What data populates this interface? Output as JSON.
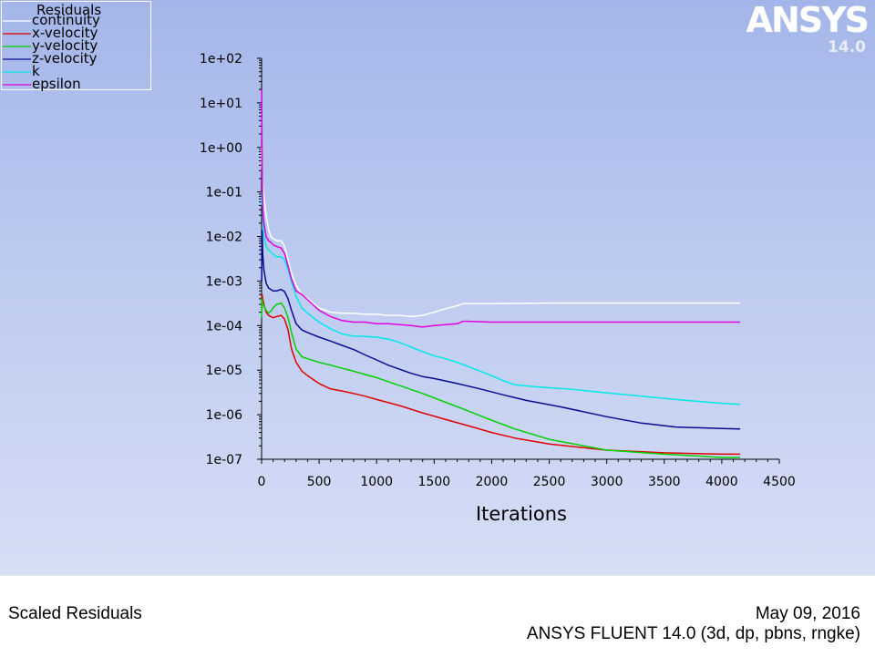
{
  "logo": {
    "name": "ANSYS",
    "version": "14.0"
  },
  "footer": {
    "title": "Scaled Residuals",
    "date": "May 09, 2016",
    "solver": "ANSYS FLUENT 14.0 (3d, dp, pbns, rngke)"
  },
  "chart_data": {
    "type": "line",
    "title": "Scaled Residuals",
    "xlabel": "Iterations",
    "ylabel": "",
    "xlim": [
      0,
      4500
    ],
    "ylim": [
      1e-07,
      100
    ],
    "yscale": "log",
    "xticks": [
      "0",
      "500",
      "1000",
      "1500",
      "2000",
      "2500",
      "3000",
      "3500",
      "4000",
      "4500"
    ],
    "yticks": [
      "1e+02",
      "1e+01",
      "1e+00",
      "1e-01",
      "1e-02",
      "1e-03",
      "1e-04",
      "1e-05",
      "1e-06",
      "1e-07"
    ],
    "legend_title": "Residuals",
    "legend_position": "top-left",
    "grid": false,
    "series": [
      {
        "name": "continuity",
        "color": "#ffffff",
        "x": [
          1,
          5,
          10,
          20,
          40,
          60,
          80,
          100,
          130,
          170,
          200,
          230,
          260,
          300,
          350,
          400,
          500,
          600,
          700,
          800,
          900,
          1000,
          1100,
          1200,
          1300,
          1400,
          1500,
          1600,
          1700,
          1750,
          1800,
          2000,
          2500,
          3000,
          3500,
          4000,
          4160
        ],
        "y": [
          1.0,
          0.3,
          0.15,
          0.08,
          0.03,
          0.015,
          0.01,
          0.009,
          0.008,
          0.008,
          0.006,
          0.003,
          0.0015,
          0.0008,
          0.0005,
          0.0004,
          0.00025,
          0.0002,
          0.00019,
          0.00019,
          0.00018,
          0.00018,
          0.00017,
          0.00017,
          0.00016,
          0.00017,
          0.0002,
          0.00024,
          0.00028,
          0.00031,
          0.00031,
          0.00031,
          0.00032,
          0.00032,
          0.00032,
          0.00032,
          0.00032
        ]
      },
      {
        "name": "x-velocity",
        "color": "#e00000",
        "x": [
          1,
          5,
          10,
          20,
          40,
          60,
          80,
          100,
          130,
          170,
          200,
          230,
          260,
          300,
          350,
          400,
          500,
          600,
          700,
          800,
          900,
          1000,
          1200,
          1400,
          1600,
          1800,
          2000,
          2200,
          2500,
          3000,
          3500,
          4000,
          4160
        ],
        "y": [
          0.00025,
          0.0005,
          0.0004,
          0.0003,
          0.0002,
          0.00017,
          0.00016,
          0.00015,
          0.00016,
          0.00017,
          0.00014,
          8e-05,
          3e-05,
          1.5e-05,
          9.5e-06,
          7.5e-06,
          5e-06,
          3.8e-06,
          3.4e-06,
          3e-06,
          2.6e-06,
          2.2e-06,
          1.6e-06,
          1.1e-06,
          7.8e-07,
          5.6e-07,
          4e-07,
          3e-07,
          2.2e-07,
          1.6e-07,
          1.4e-07,
          1.3e-07,
          1.3e-07
        ]
      },
      {
        "name": "y-velocity",
        "color": "#00d000",
        "x": [
          1,
          5,
          10,
          20,
          40,
          60,
          80,
          100,
          130,
          170,
          200,
          230,
          260,
          300,
          350,
          400,
          500,
          600,
          700,
          800,
          900,
          1000,
          1200,
          1400,
          1600,
          1800,
          2000,
          2200,
          2500,
          3000,
          3500,
          4000,
          4160
        ],
        "y": [
          0.00015,
          0.0004,
          0.0003,
          0.00028,
          0.00022,
          0.00019,
          0.00021,
          0.00025,
          0.0003,
          0.00032,
          0.00025,
          0.00015,
          7e-05,
          3e-05,
          2e-05,
          1.8e-05,
          1.5e-05,
          1.3e-05,
          1.1e-05,
          9.5e-06,
          8e-06,
          6.8e-06,
          4.5e-06,
          3e-06,
          1.9e-06,
          1.2e-06,
          7.5e-07,
          4.8e-07,
          2.8e-07,
          1.6e-07,
          1.3e-07,
          1.1e-07,
          1.1e-07
        ]
      },
      {
        "name": "z-velocity",
        "color": "#0a0a90",
        "x": [
          1,
          5,
          10,
          20,
          40,
          60,
          80,
          100,
          130,
          170,
          200,
          230,
          260,
          300,
          350,
          400,
          500,
          600,
          700,
          800,
          900,
          1000,
          1100,
          1200,
          1300,
          1400,
          1500,
          1700,
          1900,
          2100,
          2300,
          2600,
          3000,
          3300,
          3600,
          4000,
          4160
        ],
        "y": [
          0.001,
          0.0135,
          0.004,
          0.0018,
          0.0009,
          0.0007,
          0.00065,
          0.0006,
          0.0006,
          0.00065,
          0.00058,
          0.0004,
          0.00022,
          0.00011,
          8e-05,
          7e-05,
          5.5e-05,
          4.5e-05,
          3.6e-05,
          2.9e-05,
          2.2e-05,
          1.7e-05,
          1.3e-05,
          1.05e-05,
          8.5e-06,
          7.2e-06,
          6.5e-06,
          5e-06,
          3.8e-06,
          2.8e-06,
          2.1e-06,
          1.5e-06,
          9e-07,
          6.5e-07,
          5.3e-07,
          4.9e-07,
          4.8e-07
        ]
      },
      {
        "name": "k",
        "color": "#00e8e8",
        "x": [
          1,
          5,
          10,
          20,
          40,
          60,
          80,
          100,
          130,
          170,
          200,
          230,
          260,
          300,
          350,
          400,
          500,
          600,
          700,
          800,
          900,
          1000,
          1100,
          1200,
          1300,
          1400,
          1500,
          1600,
          1700,
          1800,
          1900,
          2000,
          2100,
          2200,
          2400,
          2700,
          3000,
          3300,
          3600,
          4000,
          4160
        ],
        "y": [
          0.05,
          0.1,
          0.03,
          0.01,
          0.006,
          0.005,
          0.0045,
          0.004,
          0.0035,
          0.0035,
          0.003,
          0.0018,
          0.00095,
          0.00045,
          0.00025,
          0.00019,
          0.00012,
          8.5e-05,
          6.5e-05,
          5.8e-05,
          5.7e-05,
          5.5e-05,
          5e-05,
          4.2e-05,
          3.3e-05,
          2.6e-05,
          2.1e-05,
          1.8e-05,
          1.5e-05,
          1.2e-05,
          9.5e-06,
          7.5e-06,
          5.8e-06,
          4.7e-06,
          4.2e-06,
          3.7e-06,
          3.1e-06,
          2.6e-06,
          2.2e-06,
          1.8e-06,
          1.7e-06
        ]
      },
      {
        "name": "epsilon",
        "color": "#e000e0",
        "x": [
          1,
          3,
          6,
          10,
          20,
          40,
          60,
          80,
          100,
          130,
          170,
          200,
          230,
          260,
          300,
          350,
          400,
          500,
          600,
          700,
          800,
          900,
          1000,
          1100,
          1200,
          1300,
          1400,
          1500,
          1600,
          1700,
          1750,
          1800,
          2000,
          2500,
          3000,
          3500,
          4000,
          4160
        ],
        "y": [
          20,
          1.5,
          0.15,
          0.04,
          0.02,
          0.01,
          0.008,
          0.0075,
          0.0065,
          0.006,
          0.0055,
          0.0042,
          0.0022,
          0.0011,
          0.0006,
          0.0005,
          0.00038,
          0.00022,
          0.00016,
          0.00013,
          0.00012,
          0.00012,
          0.00011,
          0.00011,
          0.000105,
          0.0001,
          9.3e-05,
          0.0001,
          0.000105,
          0.00011,
          0.000125,
          0.000125,
          0.00012,
          0.00012,
          0.00012,
          0.00012,
          0.00012,
          0.00012
        ]
      }
    ]
  }
}
